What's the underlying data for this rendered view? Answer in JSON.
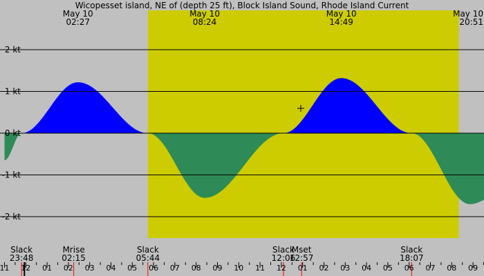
{
  "chart_data": {
    "type": "area",
    "title": "Wicopesset island, NE of (depth 25 ft), Block Island Sound, Rhode Island Current",
    "unit": "kt",
    "ylim": [
      -2.5,
      2.5
    ],
    "y_ticks": [
      {
        "value": 2,
        "label": "2 kt"
      },
      {
        "value": 1,
        "label": "1 kt"
      },
      {
        "value": 0,
        "label": "0 kt"
      },
      {
        "value": -1,
        "label": "-1 kt"
      },
      {
        "value": -2,
        "label": "-2 kt"
      }
    ],
    "xlim_hours": [
      -1.0,
      22.5
    ],
    "day_period": {
      "start": 5.733,
      "end": 20.333
    },
    "extrema": [
      {
        "date": "May 10",
        "time": "02:27",
        "hour": 2.45,
        "value": 1.22
      },
      {
        "date": "May 10",
        "time": "08:24",
        "hour": 8.4,
        "value": -1.55
      },
      {
        "date": "May 10",
        "time": "14:49",
        "hour": 14.817,
        "value": 1.32
      },
      {
        "date": "May 10",
        "time": "20:51",
        "hour": 20.85,
        "value": -1.7
      }
    ],
    "slack": [
      {
        "hour": -0.2,
        "value": 0
      },
      {
        "hour": 5.733,
        "value": 0
      },
      {
        "hour": 12.1,
        "value": 0
      },
      {
        "hour": 18.117,
        "value": 0
      }
    ],
    "ends": [
      {
        "hour": -1.0,
        "value": -0.65
      },
      {
        "hour": 22.5,
        "value": -1.4
      }
    ],
    "events": [
      {
        "name": "Slack",
        "time": "23:48",
        "hour": -0.2
      },
      {
        "name": "Mrise",
        "time": "02:15",
        "hour": 2.25
      },
      {
        "name": "Slack",
        "time": "05:44",
        "hour": 5.733
      },
      {
        "name": "Slack",
        "time": "12:06",
        "hour": 12.1
      },
      {
        "name": "Mset",
        "time": "12:57",
        "hour": 12.95
      },
      {
        "name": "Slack",
        "time": "18:07",
        "hour": 18.117
      }
    ],
    "hour_ticks": [
      "11",
      "12",
      "01",
      "02",
      "03",
      "04",
      "05",
      "06",
      "07",
      "08",
      "09",
      "10",
      "11",
      "12",
      "01",
      "02",
      "03",
      "04",
      "05",
      "06",
      "07",
      "08",
      "09"
    ],
    "hour_tick_start": -1,
    "colors": {
      "night": "#c0c0c0",
      "day": "#cccc00",
      "flood": "#0000ff",
      "ebb": "#2e8b57",
      "grid": "#000000",
      "moon_marker": "#ff0000"
    }
  }
}
